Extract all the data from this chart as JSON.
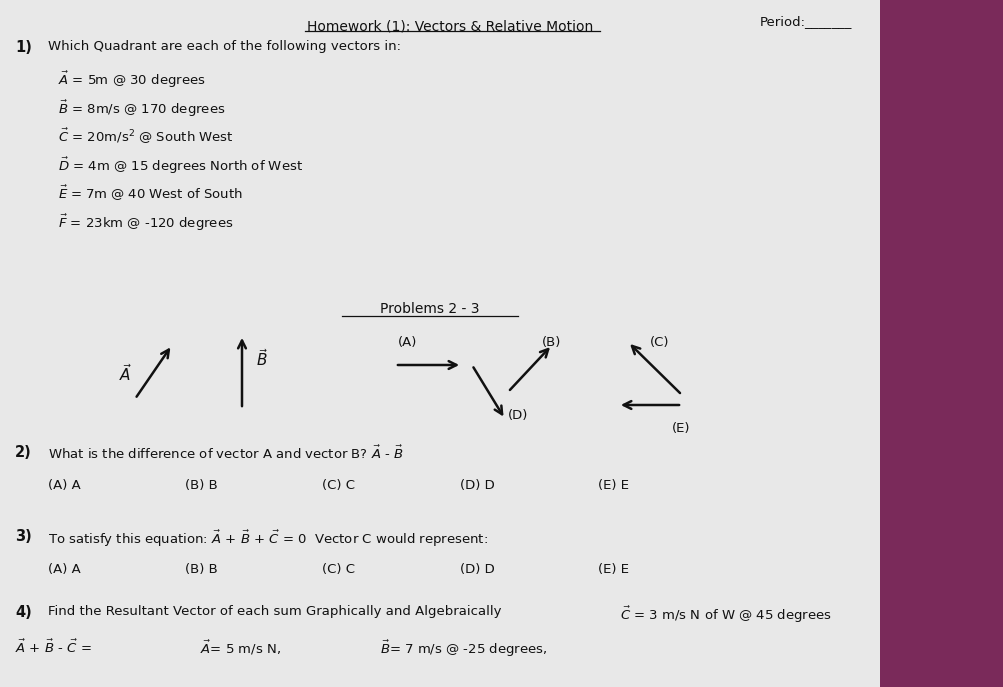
{
  "title": "Homework (1): Vectors & Relative Motion",
  "period_label": "Period:_______",
  "background_color": "#cccccc",
  "paper_color": "#e8e8e8",
  "right_strip_color": "#7a2a5a",
  "text_color": "#111111",
  "q1_number": "1)",
  "q1_text": "Which Quadrant are each of the following vectors in:",
  "vectors": [
    "$\\vec{A}$ = 5m @ 30 degrees",
    "$\\vec{B}$ = 8m/s @ 170 degrees",
    "$\\vec{C}$ = 20m/s$^2$ @ South West",
    "$\\vec{D}$ = 4m @ 15 degrees North of West",
    "$\\vec{E}$ = 7m @ 40 West of South",
    "$\\vec{F}$ = 23km @ -120 degrees"
  ],
  "problems23_title": "Problems 2 - 3",
  "arrow_A_label": "$\\vec{A}$",
  "arrow_B_label": "$\\vec{B}$",
  "q2_number": "2)",
  "q2_text": "What is the difference of vector A and vector B? $\\vec{A}$ - $\\vec{B}$",
  "q2_choices": [
    "(A) A",
    "(B) B",
    "(C) C",
    "(D) D",
    "(E) E"
  ],
  "q3_number": "3)",
  "q3_text": "To satisfy this equation: $\\vec{A}$ + $\\vec{B}$ + $\\vec{C}$ = 0  Vector C would represent:",
  "q3_choices": [
    "(A) A",
    "(B) B",
    "(C) C",
    "(D) D",
    "(E) E"
  ],
  "q4_number": "4)",
  "q4_text": "Find the Resultant Vector of each sum Graphically and Algebraically",
  "q4_c_label": "$\\vec{C}$ = 3 m/s N of W @ 45 degrees",
  "q4_given_a": "$\\vec{A}$= 5 m/s N,",
  "q4_given_b": "$\\vec{B}$= 7 m/s @ -25 degrees,",
  "q4_equation": "$\\vec{A}$ + $\\vec{B}$ - $\\vec{C}$ ="
}
